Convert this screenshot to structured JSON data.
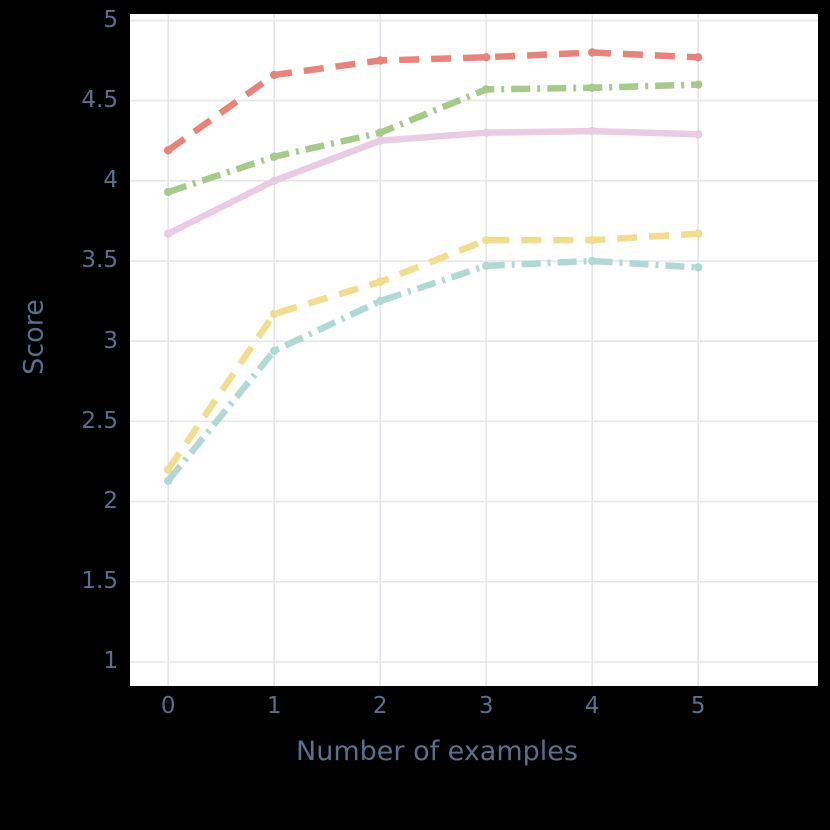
{
  "chart_data": {
    "type": "line",
    "title": "",
    "xlabel": "Number of examples",
    "ylabel": "Score",
    "x": [
      0,
      1,
      2,
      3,
      4,
      5
    ],
    "x_ticks": [
      0,
      1,
      2,
      3,
      4,
      5
    ],
    "y_ticks": [
      1,
      1.5,
      2,
      2.5,
      3,
      3.5,
      4,
      4.5,
      5
    ],
    "xlim": [
      -0.36,
      6.13
    ],
    "ylim": [
      0.85,
      5.04
    ],
    "grid": true,
    "legend": "none",
    "series": [
      {
        "name": "red-dashed",
        "color": "#e8837b",
        "dash": "dashed",
        "values": [
          4.19,
          4.66,
          4.75,
          4.77,
          4.8,
          4.77
        ]
      },
      {
        "name": "green-dashdot",
        "color": "#a6ca8a",
        "dash": "dashdot",
        "values": [
          3.93,
          4.15,
          4.3,
          4.57,
          4.58,
          4.6
        ]
      },
      {
        "name": "pink-solid",
        "color": "#e9cce3",
        "dash": "solid",
        "values": [
          3.67,
          4.0,
          4.25,
          4.3,
          4.31,
          4.29
        ]
      },
      {
        "name": "yellow-dashed",
        "color": "#f0dd8d",
        "dash": "dashed",
        "values": [
          2.2,
          3.17,
          3.37,
          3.63,
          3.63,
          3.67
        ]
      },
      {
        "name": "teal-dashdot",
        "color": "#b0d9d5",
        "dash": "dashdot",
        "values": [
          2.13,
          2.94,
          3.25,
          3.47,
          3.5,
          3.46
        ]
      }
    ],
    "colors": {
      "background": "#000000",
      "plot_bg": "#ffffff",
      "grid": "#e6e6ec",
      "label": "#5a6e8e"
    }
  }
}
